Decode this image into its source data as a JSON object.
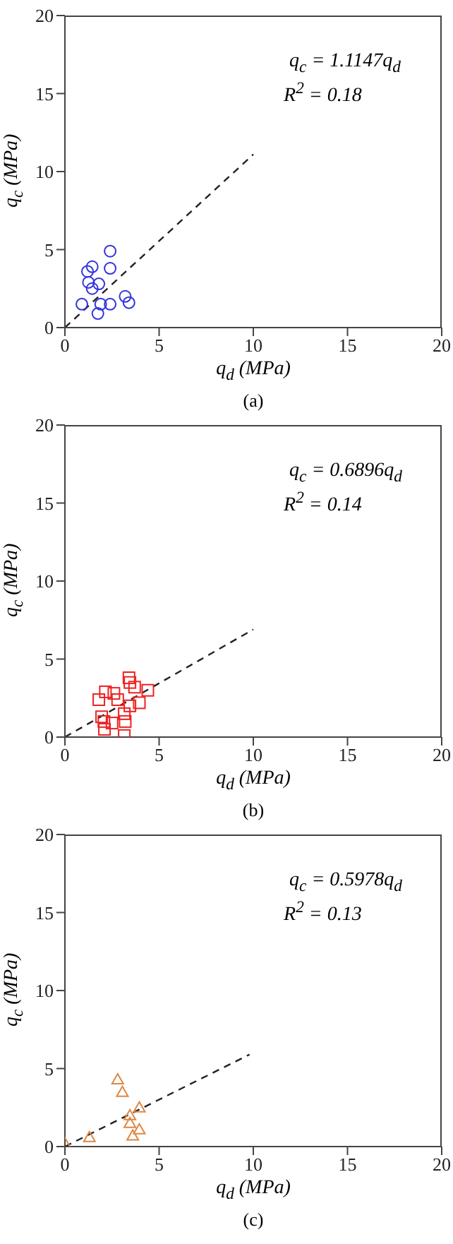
{
  "chart_data": [
    {
      "type": "scatter",
      "xlabel": "q$_{d}$ (MPa)",
      "ylabel": "q$_{c}$ (MPa)",
      "xlim": [
        0,
        20
      ],
      "ylim": [
        0,
        20
      ],
      "xticks": [
        0,
        5,
        10,
        15,
        20
      ],
      "yticks": [
        0,
        5,
        10,
        15,
        20
      ],
      "grid": false,
      "annotations": [
        "q$_{c}$ = 1.1147q$_{d}$",
        "R$^{2}$ = 0.18",
        "(a)"
      ],
      "series": [
        {
          "type": "scatter",
          "marker": "circle",
          "color": "#3333dd",
          "x": [
            0.9,
            1.2,
            1.45,
            1.25,
            1.45,
            1.8,
            2.4,
            2.4,
            1.9,
            1.75,
            2.4,
            3.2,
            3.4
          ],
          "values": [
            1.5,
            3.6,
            3.9,
            2.9,
            2.5,
            2.8,
            4.9,
            3.8,
            1.5,
            0.9,
            1.5,
            2.0,
            1.6
          ]
        },
        {
          "type": "line",
          "marker": "none",
          "line_style": "dashed",
          "color": "#222222",
          "x": [
            0,
            10
          ],
          "values": [
            0,
            11.1
          ]
        }
      ]
    },
    {
      "type": "scatter",
      "xlabel": "q$_{d}$ (MPa)",
      "ylabel": "q$_{c}$ (MPa)",
      "xlim": [
        0,
        20
      ],
      "ylim": [
        0,
        20
      ],
      "xticks": [
        0,
        5,
        10,
        15,
        20
      ],
      "yticks": [
        0,
        5,
        10,
        15,
        20
      ],
      "grid": false,
      "annotations": [
        "q$_{c}$ = 0.6896q$_{d}$",
        "R$^{2}$ = 0.14",
        "(b)"
      ],
      "series": [
        {
          "type": "scatter",
          "marker": "square",
          "color": "#ee2222",
          "x": [
            1.8,
            2.15,
            2.6,
            2.8,
            1.95,
            2.07,
            2.1,
            2.5,
            3.15,
            3.2,
            3.15,
            3.4,
            3.45,
            3.7,
            3.45,
            3.95,
            4.4
          ],
          "values": [
            2.4,
            2.9,
            2.8,
            2.4,
            1.3,
            1.0,
            0.5,
            0.9,
            1.5,
            1.0,
            0.1,
            3.8,
            3.5,
            3.2,
            2.0,
            2.2,
            3.0
          ]
        },
        {
          "type": "line",
          "marker": "none",
          "line_style": "dashed",
          "color": "#222222",
          "x": [
            0,
            10
          ],
          "values": [
            0,
            6.9
          ]
        }
      ]
    },
    {
      "type": "scatter",
      "xlabel": "q$_{d}$ (MPa)",
      "ylabel": "q$_{c}$ (MPa)",
      "xlim": [
        0,
        20
      ],
      "ylim": [
        0,
        20
      ],
      "xticks": [
        0,
        5,
        10,
        15,
        20
      ],
      "yticks": [
        0,
        5,
        10,
        15,
        20
      ],
      "grid": false,
      "annotations": [
        "q$_{c}$ = 0.5978q$_{d}$",
        "R$^{2}$ = 0.13",
        "(c)"
      ],
      "series": [
        {
          "type": "scatter",
          "marker": "triangle",
          "color": "#dd8844",
          "x": [
            0,
            1.3,
            2.8,
            3.05,
            3.95,
            3.45,
            3.45,
            3.6,
            3.95
          ],
          "values": [
            0.2,
            0.6,
            4.3,
            3.5,
            2.5,
            2.0,
            1.5,
            0.7,
            1.1
          ]
        },
        {
          "type": "line",
          "marker": "none",
          "line_style": "dashed",
          "color": "#222222",
          "x": [
            0,
            9.8
          ],
          "values": [
            0,
            5.9
          ]
        }
      ]
    }
  ]
}
